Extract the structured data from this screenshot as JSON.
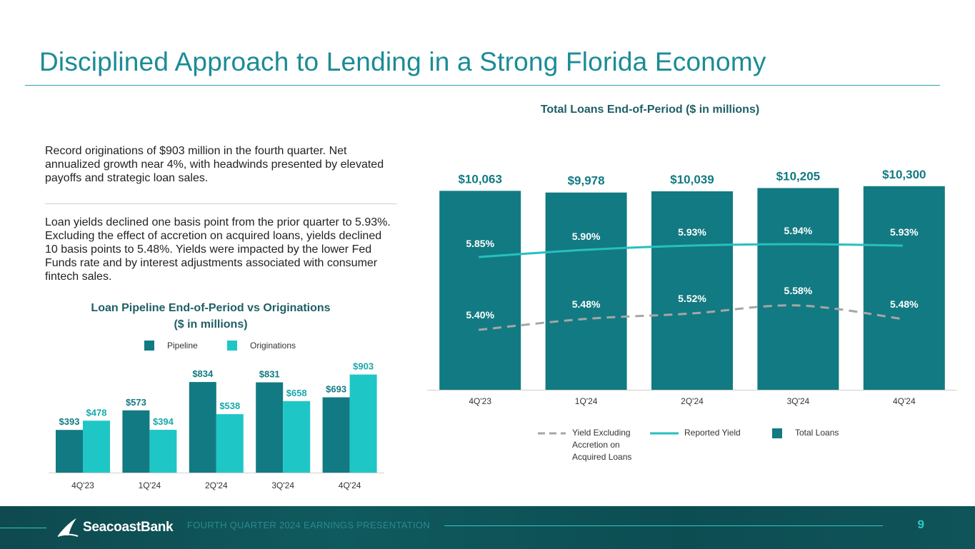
{
  "title": "Disciplined Approach to Lending in a Strong Florida Economy",
  "paragraphs": {
    "originations": "Record originations of $903 million in the fourth quarter. Net annualized growth near 4%, with headwinds presented by elevated payoffs and strategic loan sales.",
    "yields": "Loan yields declined one basis point from the prior quarter to 5.93%. Excluding the effect of accretion on acquired loans, yields declined 10 basis points to 5.48%. Yields were impacted by the lower Fed Funds rate and by interest adjustments associated with consumer fintech sales."
  },
  "colors": {
    "title": "#1a8c96",
    "dark_teal": "#127a82",
    "light_teal": "#1fc6c6",
    "reported_line": "#26c0c0",
    "dashed_line": "#a6a6a6"
  },
  "chart_data": [
    {
      "type": "bar",
      "title_line1": "Loan Pipeline End-of-Period vs Originations",
      "title_line2": "($ in millions)",
      "categories": [
        "4Q'23",
        "1Q'24",
        "2Q'24",
        "3Q'24",
        "4Q'24"
      ],
      "series": [
        {
          "name": "Pipeline",
          "values": [
            393,
            573,
            834,
            831,
            693
          ],
          "labels": [
            "$393",
            "$573",
            "$834",
            "$831",
            "$693"
          ],
          "color": "#127a82"
        },
        {
          "name": "Originations",
          "values": [
            478,
            394,
            538,
            658,
            903
          ],
          "labels": [
            "$478",
            "$394",
            "$538",
            "$658",
            "$903"
          ],
          "color": "#1fc6c6"
        }
      ],
      "legend_position": "top",
      "ylim": [
        0,
        920
      ],
      "grid": false
    },
    {
      "type": "bar",
      "title": "Total Loans End-of-Period ($ in millions)",
      "categories": [
        "4Q'23",
        "1Q'24",
        "2Q'24",
        "3Q'24",
        "4Q'24"
      ],
      "series": [
        {
          "name": "Total Loans",
          "kind": "bar",
          "values": [
            10063,
            9978,
            10039,
            10205,
            10300
          ],
          "labels": [
            "$10,063",
            "$9,978",
            "$10,039",
            "$10,205",
            "$10,300"
          ],
          "color": "#127a82"
        },
        {
          "name": "Reported Yield",
          "kind": "line",
          "values": [
            5.85,
            5.9,
            5.93,
            5.94,
            5.93
          ],
          "labels": [
            "5.85%",
            "5.90%",
            "5.93%",
            "5.94%",
            "5.93%"
          ],
          "color": "#26c0c0"
        },
        {
          "name": "Yield Excluding Accretion on Acquired Loans",
          "kind": "dashed-line",
          "values": [
            5.4,
            5.48,
            5.52,
            5.58,
            5.48
          ],
          "labels": [
            "5.40%",
            "5.48%",
            "5.52%",
            "5.58%",
            "5.48%"
          ],
          "color": "#a6a6a6"
        }
      ],
      "legend": [
        "Yield Excluding Accretion on Acquired Loans",
        "Reported Yield",
        "Total Loans"
      ],
      "legend_position": "bottom",
      "ylim_bars": [
        0,
        10400
      ],
      "grid": false
    }
  ],
  "footer": {
    "logo_text": "SeacoastBank",
    "presentation": "FOURTH QUARTER 2024 EARNINGS PRESENTATION",
    "page_number": "9"
  }
}
